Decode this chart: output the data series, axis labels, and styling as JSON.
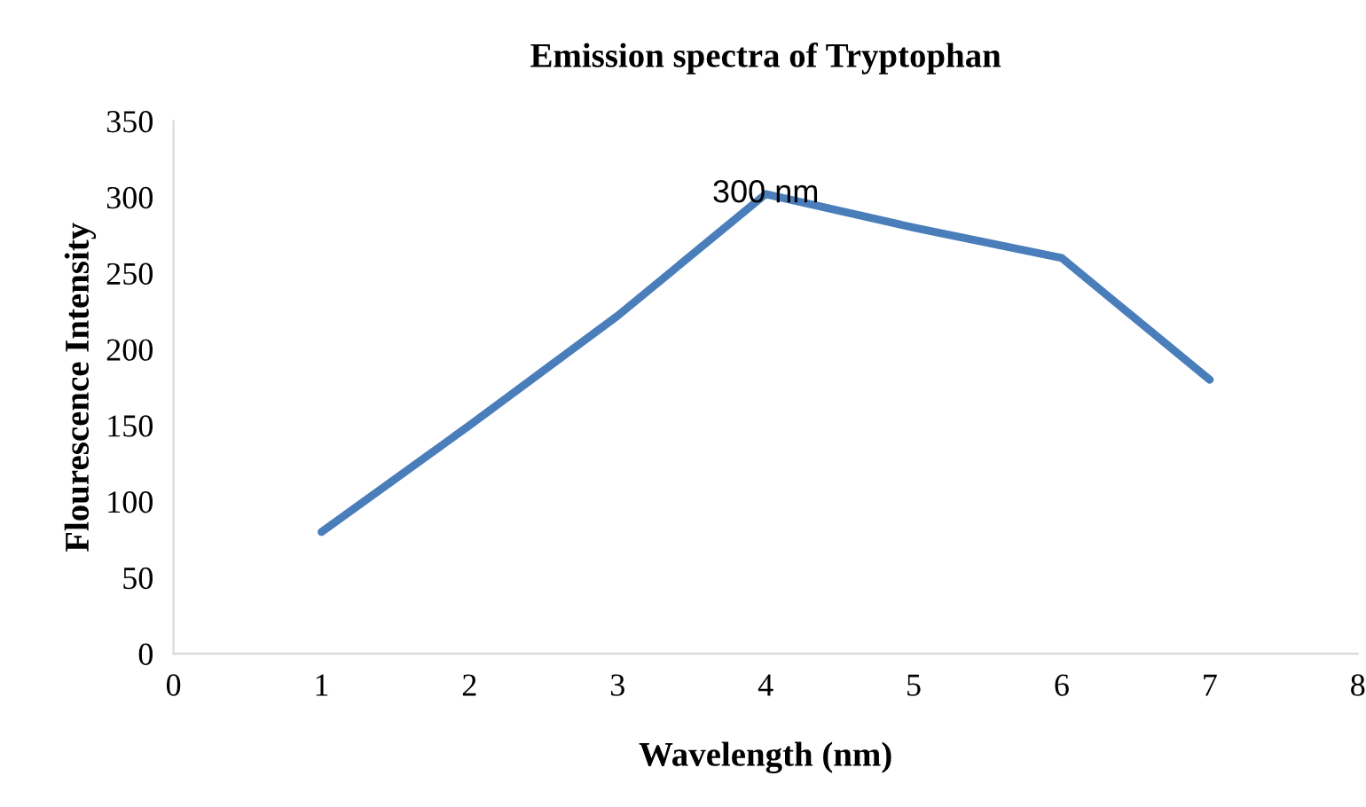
{
  "chart_data": {
    "type": "line",
    "title": "Emission spectra of Tryptophan",
    "xlabel": "Wavelength (nm)",
    "ylabel": "Flourescence Intensity",
    "x": [
      1,
      2,
      3,
      4,
      5,
      6,
      7
    ],
    "series": [
      {
        "color": "#4a7ebb",
        "values": [
          80,
          150,
          222,
          302,
          280,
          260,
          180
        ]
      }
    ],
    "annotations": [
      {
        "text": "300 nm",
        "x": 4,
        "y": 302
      }
    ],
    "xlim": [
      0,
      8
    ],
    "xticks": [
      0,
      1,
      2,
      3,
      4,
      5,
      6,
      7,
      8
    ],
    "ylim": [
      0,
      350
    ],
    "yticks": [
      0,
      50,
      100,
      150,
      200,
      250,
      300,
      350
    ],
    "grid": false,
    "legend": false,
    "marker": "none",
    "line_style": "solid"
  }
}
